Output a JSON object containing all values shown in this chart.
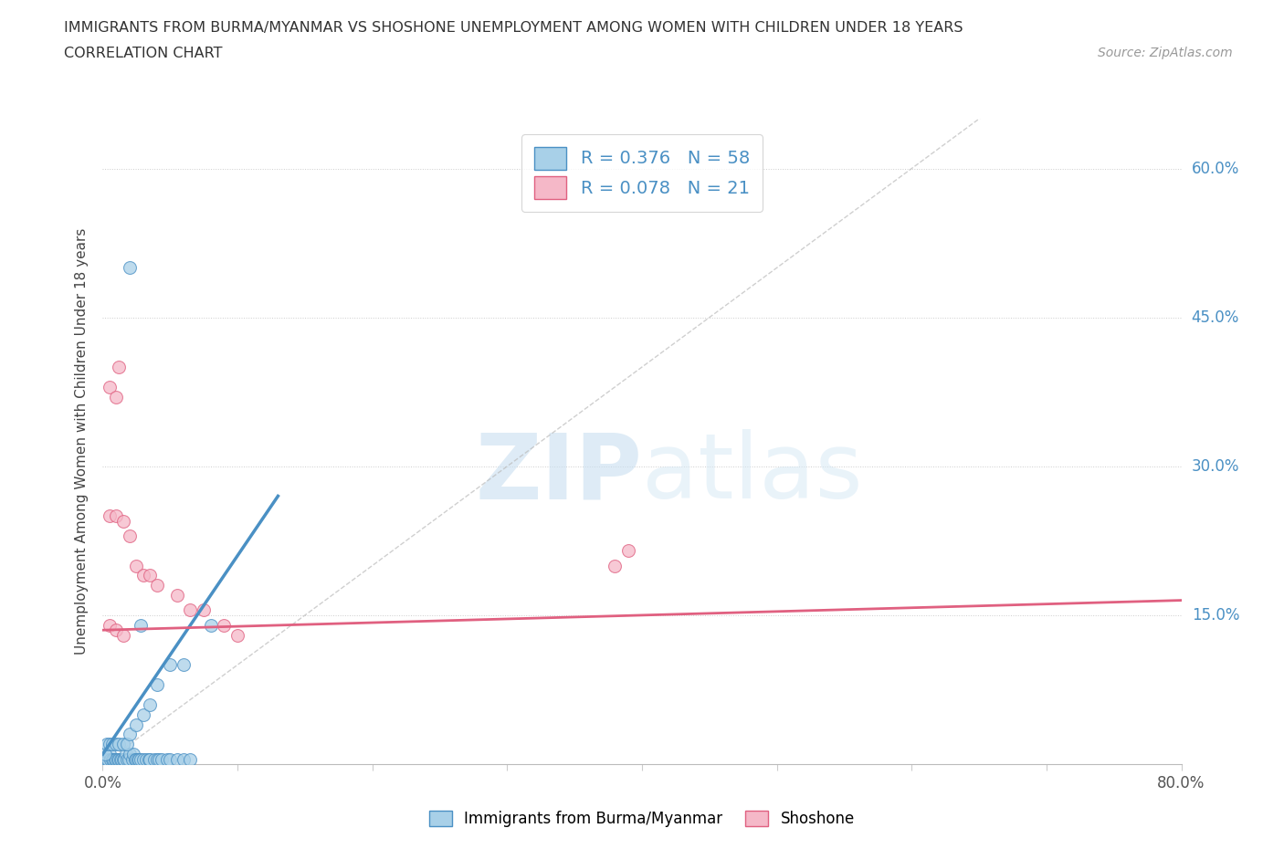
{
  "title_line1": "IMMIGRANTS FROM BURMA/MYANMAR VS SHOSHONE UNEMPLOYMENT AMONG WOMEN WITH CHILDREN UNDER 18 YEARS",
  "title_line2": "CORRELATION CHART",
  "source": "Source: ZipAtlas.com",
  "ylabel": "Unemployment Among Women with Children Under 18 years",
  "xlim": [
    0.0,
    0.8
  ],
  "ylim": [
    0.0,
    0.65
  ],
  "x_ticks": [
    0.0,
    0.1,
    0.2,
    0.3,
    0.4,
    0.5,
    0.6,
    0.7,
    0.8
  ],
  "x_tick_labels": [
    "0.0%",
    "",
    "",
    "",
    "",
    "",
    "",
    "",
    "80.0%"
  ],
  "y_ticks": [
    0.0,
    0.15,
    0.3,
    0.45,
    0.6
  ],
  "y_tick_labels": [
    "",
    "15.0%",
    "30.0%",
    "45.0%",
    "60.0%"
  ],
  "watermark": "ZIPatlas",
  "legend1_r": "0.376",
  "legend1_n": "58",
  "legend2_r": "0.078",
  "legend2_n": "21",
  "color_blue": "#a8d0e8",
  "color_pink": "#f5b8c8",
  "line_blue": "#4a90c4",
  "line_pink": "#e06080",
  "blue_trend_x": [
    0.0,
    0.13
  ],
  "blue_trend_y": [
    0.01,
    0.27
  ],
  "pink_trend_x": [
    0.0,
    0.8
  ],
  "pink_trend_y": [
    0.135,
    0.165
  ],
  "scatter_blue": [
    [
      0.001,
      0.005
    ],
    [
      0.002,
      0.005
    ],
    [
      0.003,
      0.005
    ],
    [
      0.004,
      0.005
    ],
    [
      0.005,
      0.01
    ],
    [
      0.006,
      0.005
    ],
    [
      0.007,
      0.005
    ],
    [
      0.008,
      0.005
    ],
    [
      0.009,
      0.005
    ],
    [
      0.01,
      0.005
    ],
    [
      0.011,
      0.005
    ],
    [
      0.012,
      0.005
    ],
    [
      0.013,
      0.005
    ],
    [
      0.014,
      0.005
    ],
    [
      0.015,
      0.005
    ],
    [
      0.016,
      0.005
    ],
    [
      0.017,
      0.01
    ],
    [
      0.018,
      0.005
    ],
    [
      0.019,
      0.005
    ],
    [
      0.02,
      0.01
    ],
    [
      0.022,
      0.005
    ],
    [
      0.023,
      0.01
    ],
    [
      0.024,
      0.005
    ],
    [
      0.025,
      0.005
    ],
    [
      0.026,
      0.005
    ],
    [
      0.027,
      0.005
    ],
    [
      0.028,
      0.005
    ],
    [
      0.03,
      0.005
    ],
    [
      0.032,
      0.005
    ],
    [
      0.034,
      0.005
    ],
    [
      0.035,
      0.005
    ],
    [
      0.038,
      0.005
    ],
    [
      0.04,
      0.005
    ],
    [
      0.042,
      0.005
    ],
    [
      0.044,
      0.005
    ],
    [
      0.048,
      0.005
    ],
    [
      0.05,
      0.005
    ],
    [
      0.055,
      0.005
    ],
    [
      0.06,
      0.005
    ],
    [
      0.065,
      0.005
    ],
    [
      0.002,
      0.01
    ],
    [
      0.003,
      0.02
    ],
    [
      0.005,
      0.02
    ],
    [
      0.007,
      0.02
    ],
    [
      0.01,
      0.02
    ],
    [
      0.012,
      0.02
    ],
    [
      0.015,
      0.02
    ],
    [
      0.018,
      0.02
    ],
    [
      0.02,
      0.03
    ],
    [
      0.025,
      0.04
    ],
    [
      0.03,
      0.05
    ],
    [
      0.035,
      0.06
    ],
    [
      0.04,
      0.08
    ],
    [
      0.05,
      0.1
    ],
    [
      0.028,
      0.14
    ],
    [
      0.06,
      0.1
    ],
    [
      0.02,
      0.5
    ],
    [
      0.08,
      0.14
    ]
  ],
  "scatter_pink": [
    [
      0.005,
      0.38
    ],
    [
      0.01,
      0.37
    ],
    [
      0.012,
      0.4
    ],
    [
      0.005,
      0.25
    ],
    [
      0.01,
      0.25
    ],
    [
      0.015,
      0.245
    ],
    [
      0.02,
      0.23
    ],
    [
      0.025,
      0.2
    ],
    [
      0.03,
      0.19
    ],
    [
      0.035,
      0.19
    ],
    [
      0.04,
      0.18
    ],
    [
      0.055,
      0.17
    ],
    [
      0.065,
      0.155
    ],
    [
      0.075,
      0.155
    ],
    [
      0.09,
      0.14
    ],
    [
      0.1,
      0.13
    ],
    [
      0.38,
      0.2
    ],
    [
      0.39,
      0.215
    ],
    [
      0.005,
      0.14
    ],
    [
      0.01,
      0.135
    ],
    [
      0.015,
      0.13
    ]
  ],
  "background_color": "#ffffff",
  "grid_color": "#cccccc"
}
